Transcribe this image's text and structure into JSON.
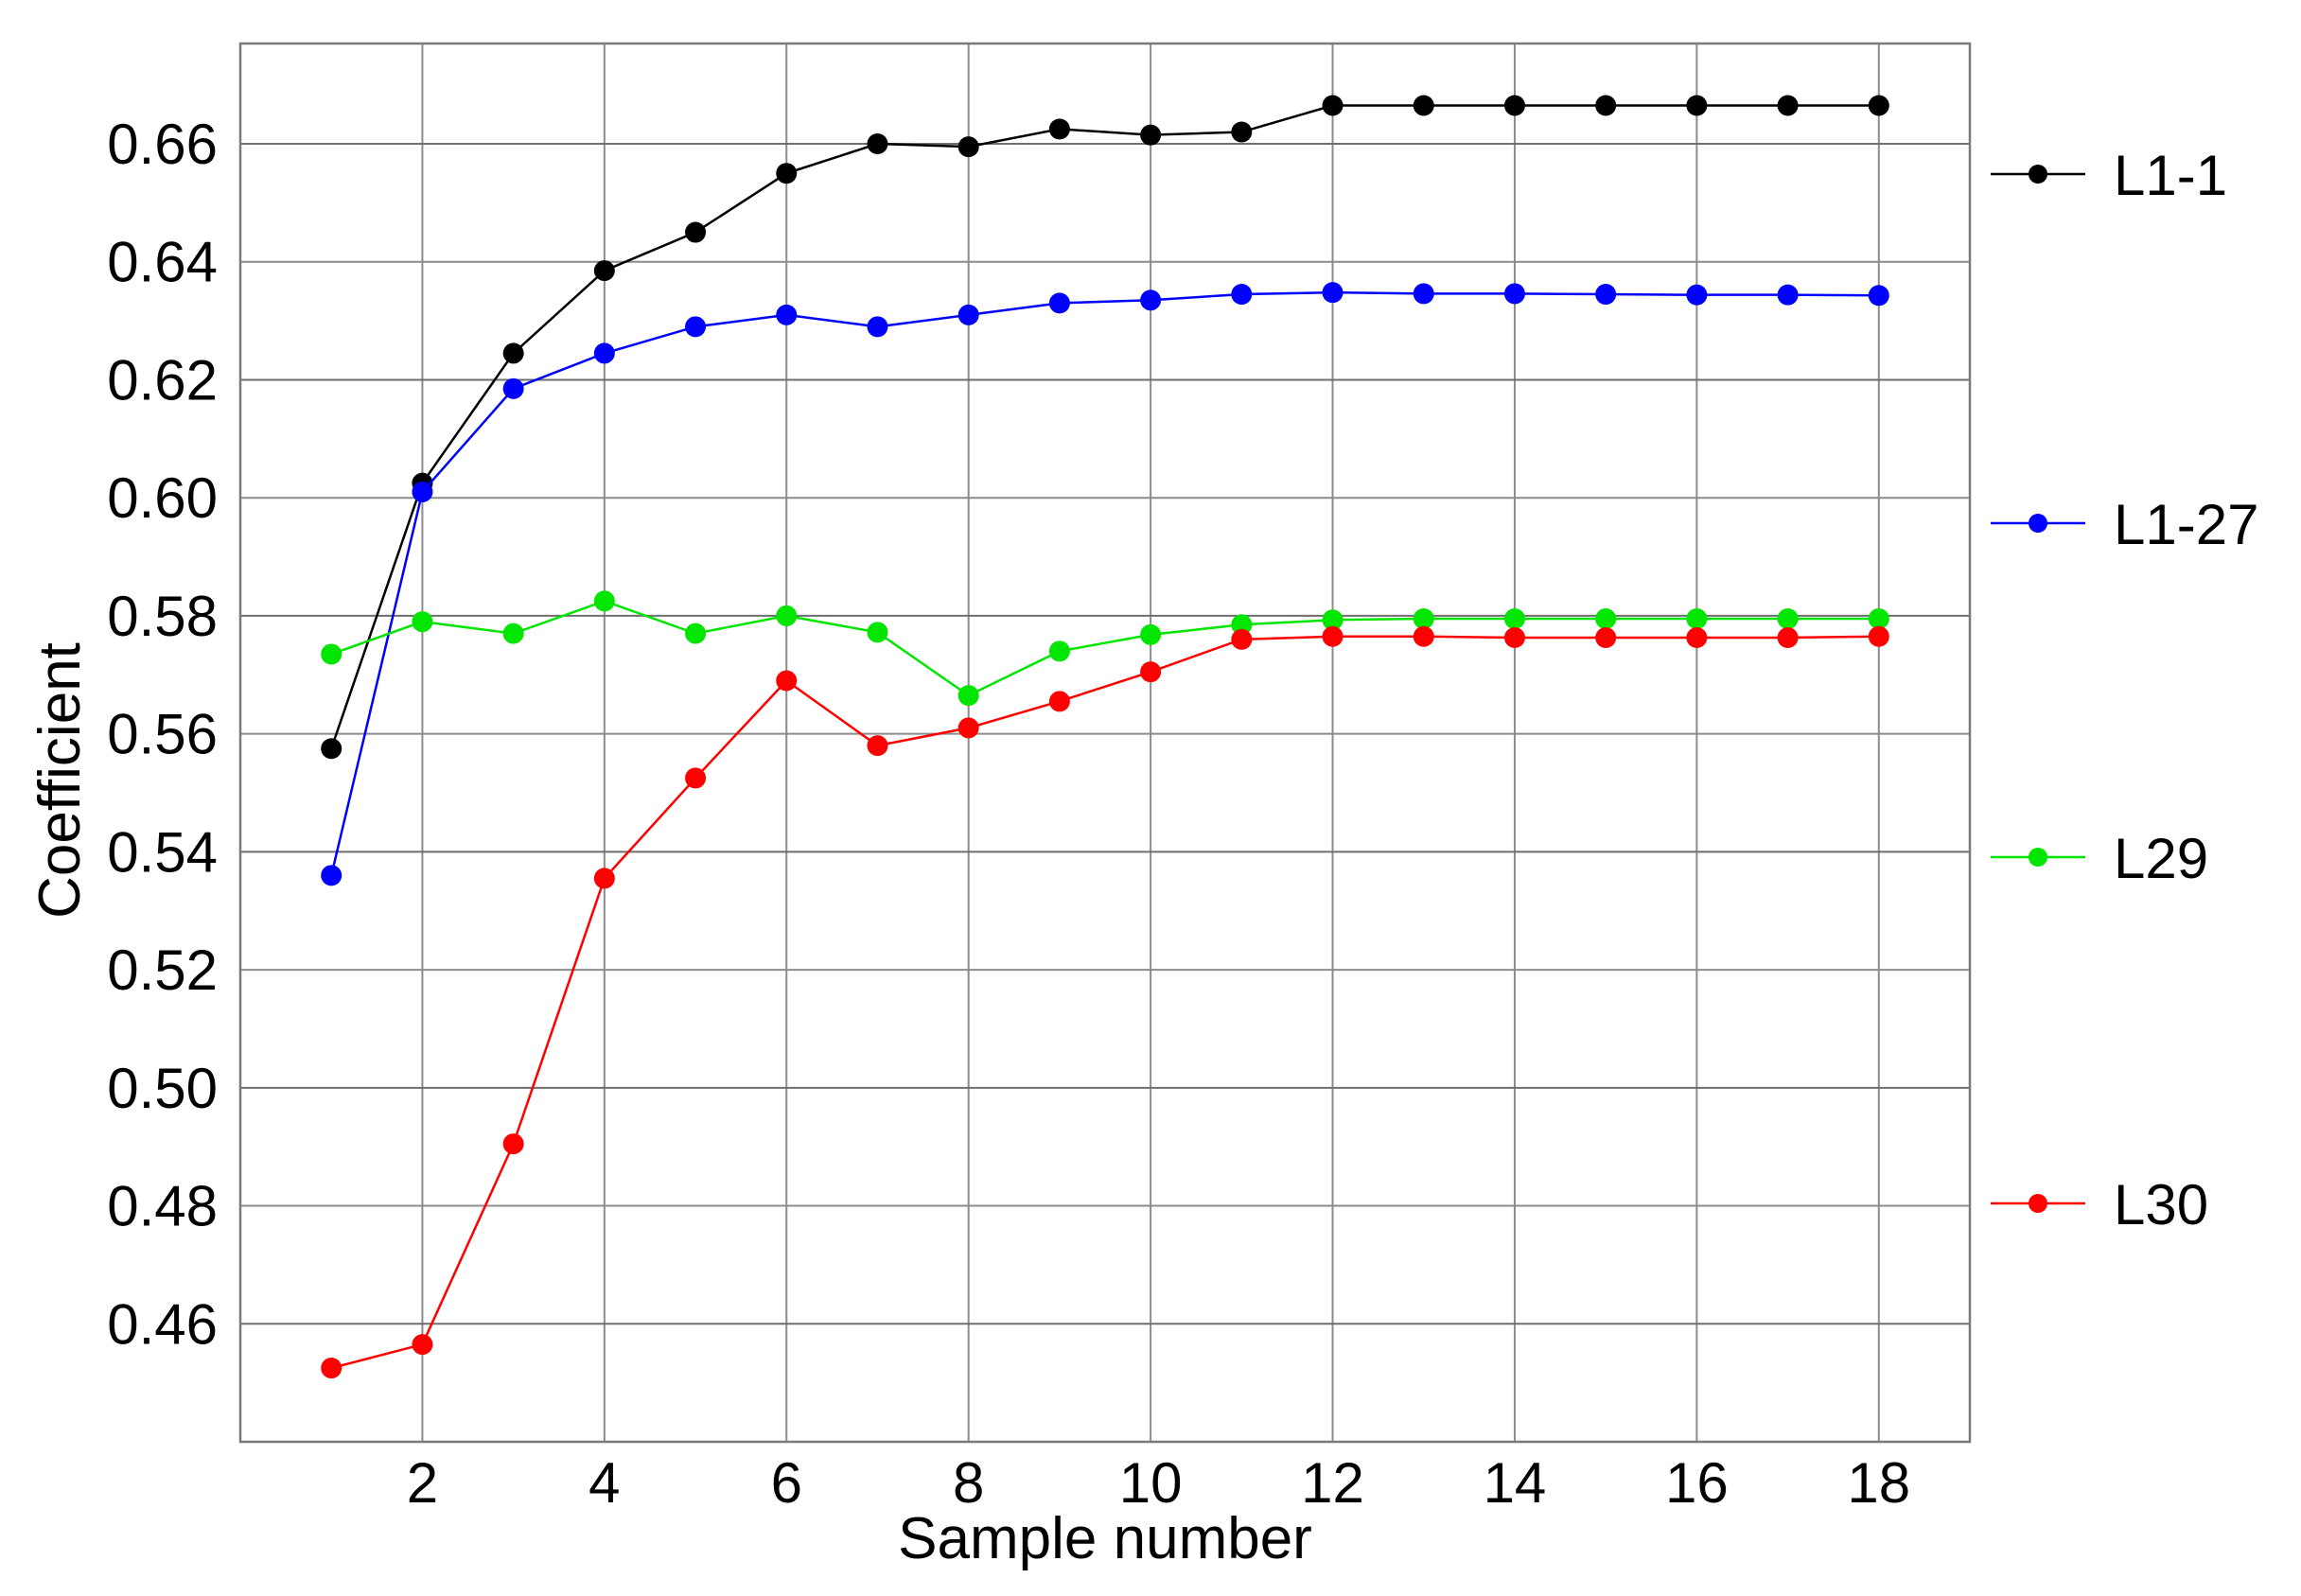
{
  "chart_data": {
    "type": "line",
    "xlabel": "Sample number",
    "ylabel": "Coefficient",
    "xlim": [
      0,
      19
    ],
    "ylim": [
      0.44,
      0.677
    ],
    "x_ticks": [
      2,
      4,
      6,
      8,
      10,
      12,
      14,
      16,
      18
    ],
    "y_ticks": [
      0.46,
      0.48,
      0.5,
      0.52,
      0.54,
      0.56,
      0.58,
      0.6,
      0.62,
      0.64,
      0.66
    ],
    "x_tick_labels": [
      "2",
      "4",
      "6",
      "8",
      "10",
      "12",
      "14",
      "16",
      "18"
    ],
    "y_tick_labels": [
      "0.46",
      "0.48",
      "0.50",
      "0.52",
      "0.54",
      "0.56",
      "0.58",
      "0.60",
      "0.62",
      "0.64",
      "0.66"
    ],
    "grid": true,
    "legend_position": "right",
    "x": [
      1,
      2,
      3,
      4,
      5,
      6,
      7,
      8,
      9,
      10,
      11,
      12,
      13,
      14,
      15,
      16,
      17,
      18
    ],
    "series": [
      {
        "name": "L1-1",
        "color": "#000000",
        "values": [
          0.5575,
          0.6025,
          0.6245,
          0.6385,
          0.645,
          0.655,
          0.66,
          0.6595,
          0.6625,
          0.6615,
          0.662,
          0.6665,
          0.6665,
          0.6665,
          0.6665,
          0.6665,
          0.6665,
          0.6665
        ]
      },
      {
        "name": "L1-27",
        "color": "#0000ff",
        "values": [
          0.536,
          0.601,
          0.6185,
          0.6245,
          0.629,
          0.631,
          0.629,
          0.631,
          0.633,
          0.6335,
          0.6345,
          0.6348,
          0.6346,
          0.6346,
          0.6345,
          0.6344,
          0.6344,
          0.6343
        ]
      },
      {
        "name": "L29",
        "color": "#00e600",
        "values": [
          0.5735,
          0.579,
          0.577,
          0.5825,
          0.577,
          0.58,
          0.5772,
          0.5665,
          0.574,
          0.5768,
          0.5785,
          0.5793,
          0.5795,
          0.5795,
          0.5795,
          0.5795,
          0.5795,
          0.5795
        ]
      },
      {
        "name": "L30",
        "color": "#ff0000",
        "values": [
          0.4525,
          0.4565,
          0.4905,
          0.5355,
          0.5525,
          0.569,
          0.558,
          0.561,
          0.5655,
          0.5705,
          0.576,
          0.5765,
          0.5765,
          0.5763,
          0.5763,
          0.5763,
          0.5763,
          0.5765
        ]
      }
    ]
  }
}
